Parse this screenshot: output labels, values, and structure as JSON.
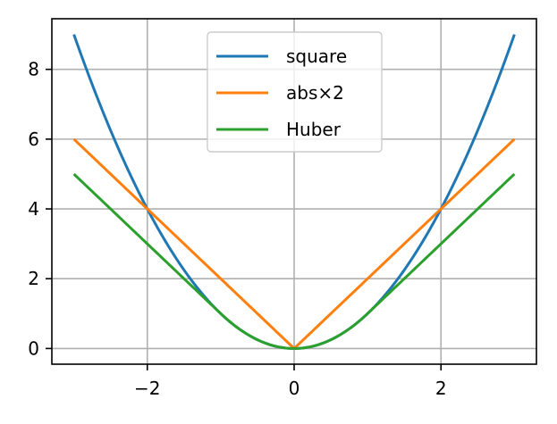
{
  "chart_data": {
    "type": "line",
    "title": "",
    "xlabel": "",
    "ylabel": "",
    "xlim": [
      -3.3,
      3.3
    ],
    "ylim": [
      -0.45,
      9.45
    ],
    "xticks": [
      -2,
      0,
      2
    ],
    "yticks": [
      0,
      2,
      4,
      6,
      8
    ],
    "xtick_labels": [
      "−2",
      "0",
      "2"
    ],
    "ytick_labels": [
      "0",
      "2",
      "4",
      "6",
      "8"
    ],
    "grid": true,
    "legend_position": "top-center",
    "x_range": [
      -3,
      3
    ],
    "series": [
      {
        "name": "square",
        "color": "#1f77b4",
        "function": "x^2"
      },
      {
        "name": "abs×2",
        "color": "#ff7f0e",
        "function": "2*|x|"
      },
      {
        "name": "Huber",
        "color": "#2ca02c",
        "function": "x^2 if |x|<=1 else 2*|x|-1"
      }
    ]
  }
}
